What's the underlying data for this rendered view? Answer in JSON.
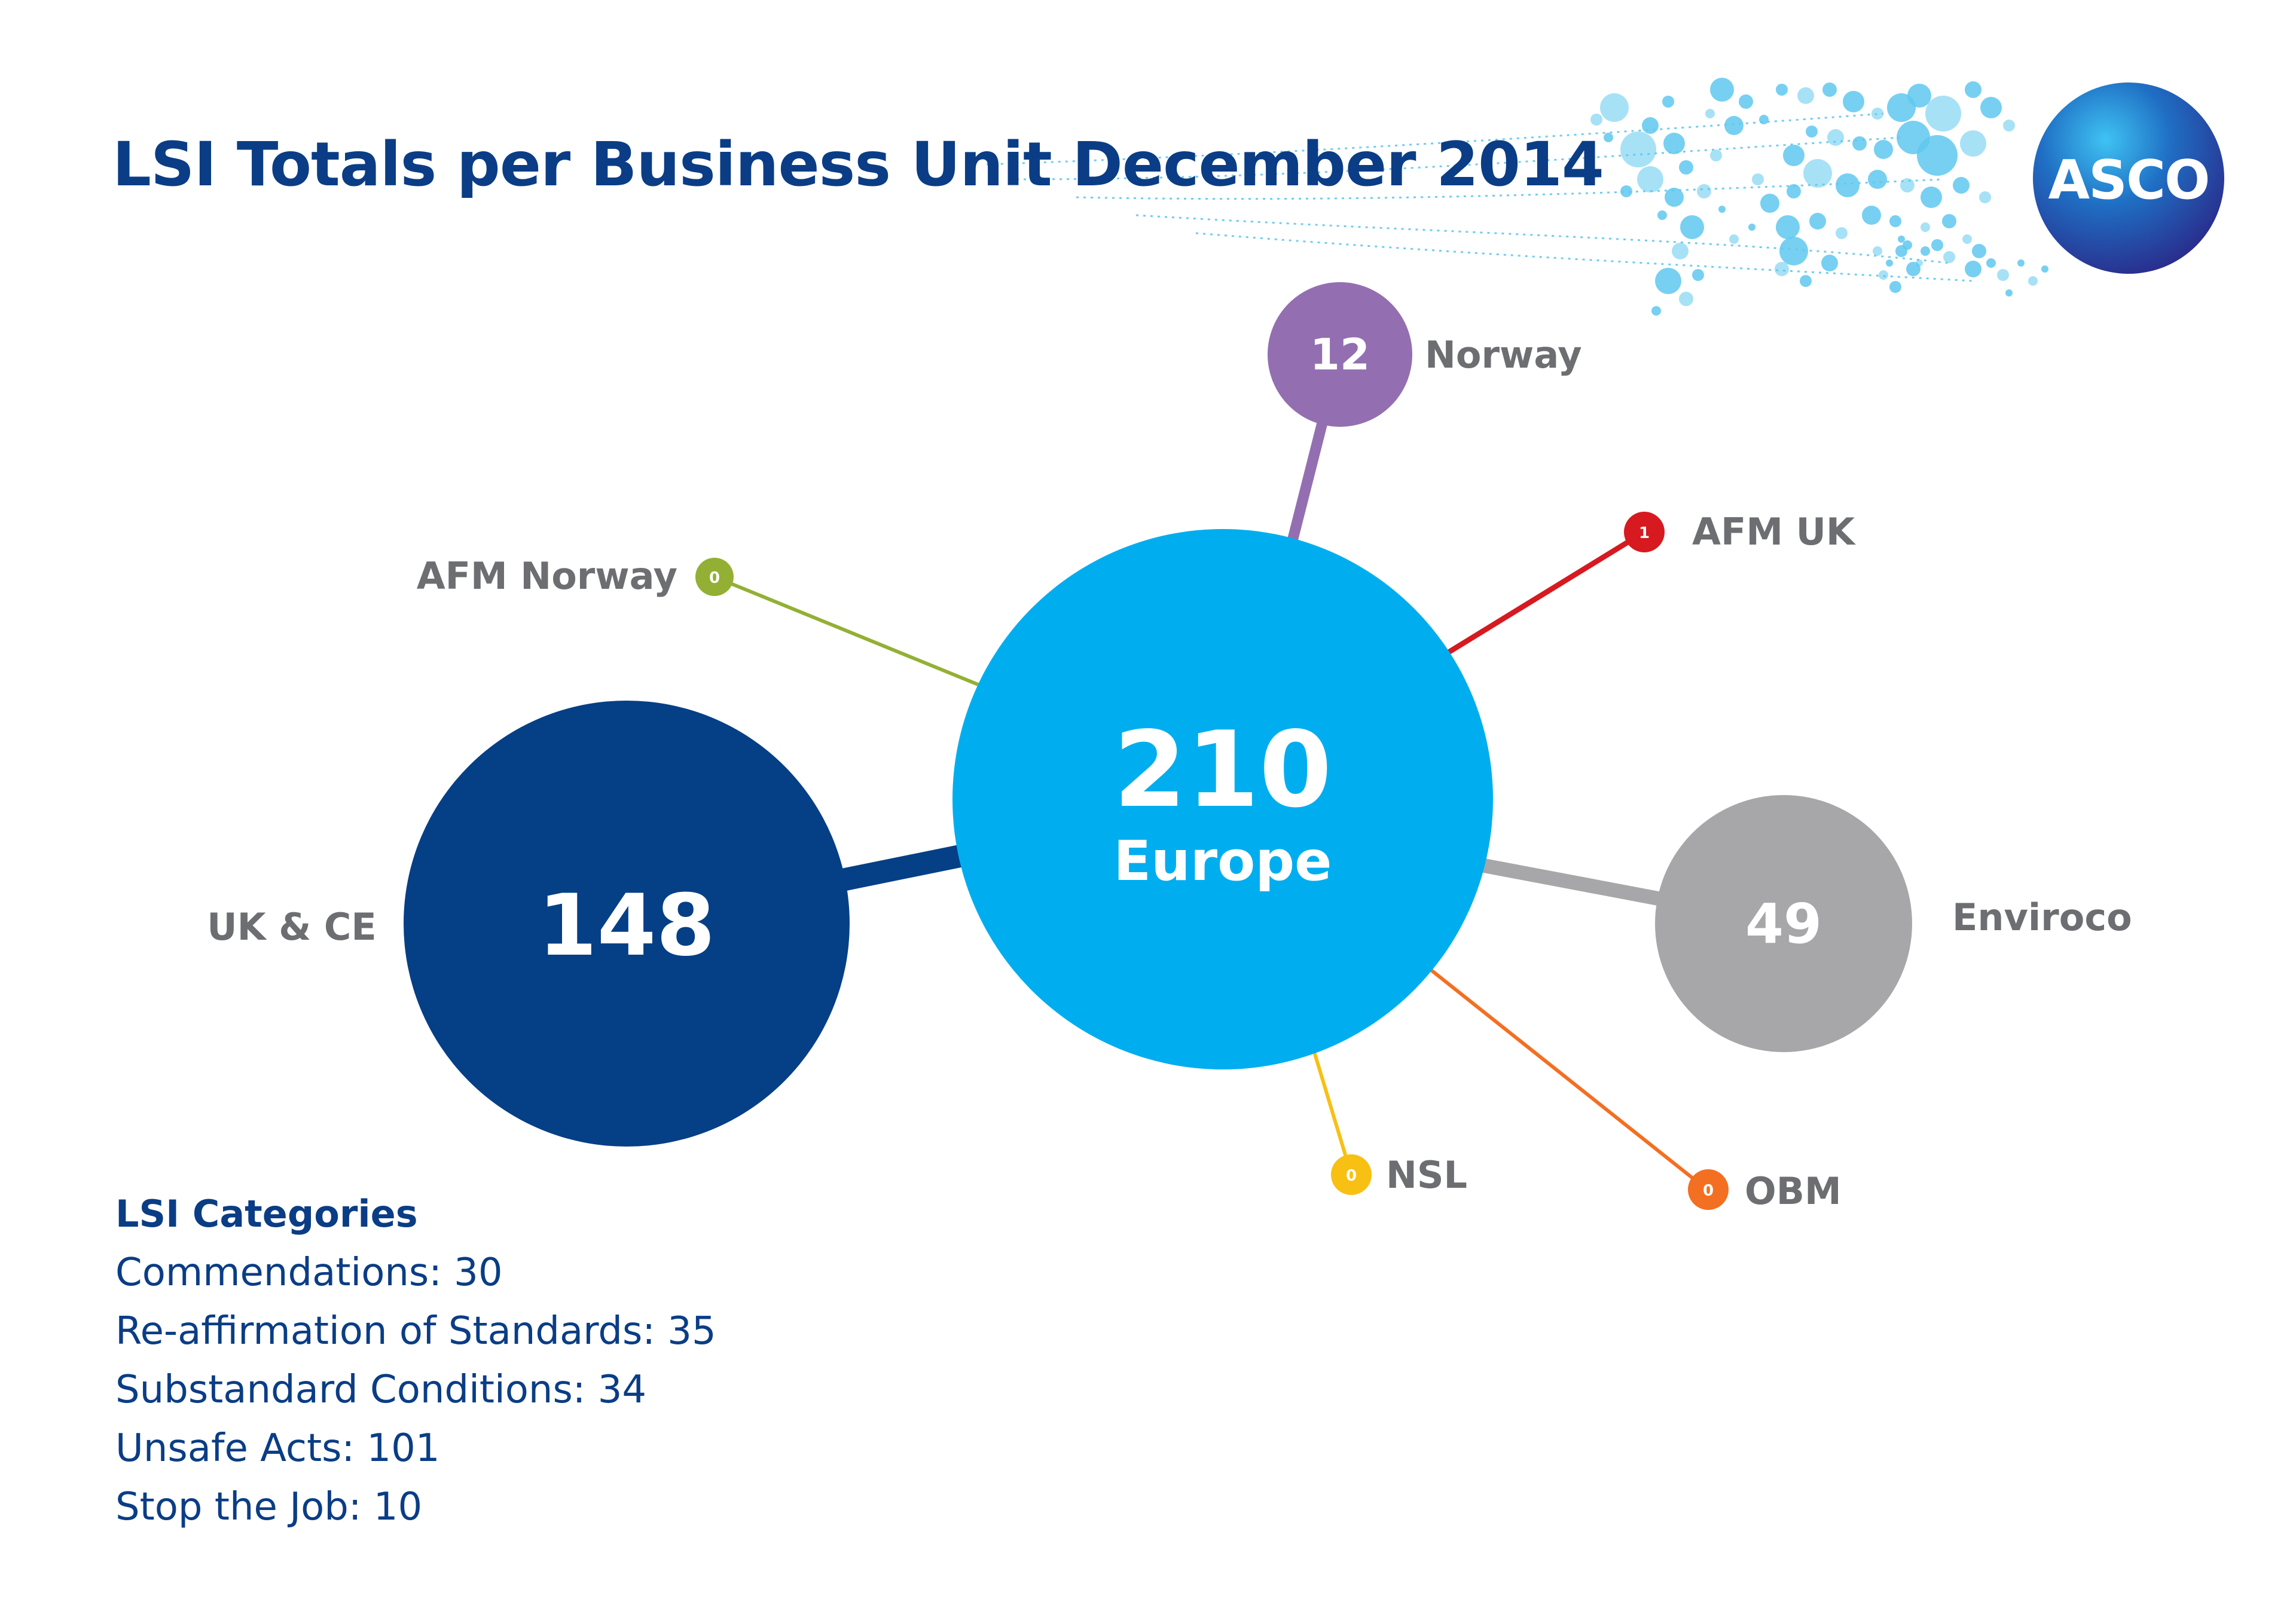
{
  "title": "LSI Totals per Business Unit December 2014",
  "logo": {
    "text": "ASCO"
  },
  "hub": {
    "value": "210",
    "label": "Europe",
    "color": "#00aeef"
  },
  "units": [
    {
      "id": "uk-ce",
      "label": "UK & CE",
      "value": "148",
      "color": "#053f86"
    },
    {
      "id": "norway",
      "label": "Norway",
      "value": "12",
      "color": "#936fb1"
    },
    {
      "id": "afm-uk",
      "label": "AFM UK",
      "value": "1",
      "color": "#d71920"
    },
    {
      "id": "afm-norway",
      "label": "AFM Norway",
      "value": "0",
      "color": "#93b034"
    },
    {
      "id": "enviroco",
      "label": "Enviroco",
      "value": "49",
      "color": "#a7a6a8"
    },
    {
      "id": "nsl",
      "label": "NSL",
      "value": "0",
      "color": "#f7c012"
    },
    {
      "id": "obm",
      "label": "OBM",
      "value": "0",
      "color": "#f36f21"
    }
  ],
  "categories": {
    "heading": "LSI Categories",
    "items": [
      "Commendations: 30",
      "Re-affirmation of Standards: 35",
      "Substandard Conditions: 34",
      "Unsafe Acts: 101",
      "Stop the Job: 10"
    ]
  }
}
